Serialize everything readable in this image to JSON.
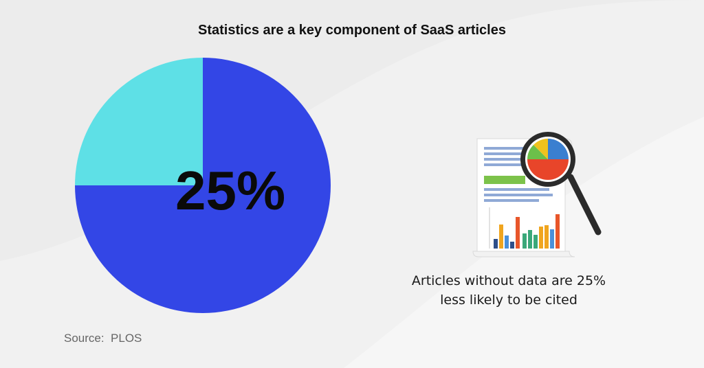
{
  "title": "Statistics are a key component of SaaS articles",
  "center_label": "25%",
  "caption_line1": "Articles without data are 25%",
  "caption_line2": "less likely to be cited",
  "source": "Source:  PLOS",
  "colors": {
    "background": "#ececec",
    "major_slice": "#3346e6",
    "minor_slice": "#5ee0e6",
    "text": "#111111"
  },
  "illustration_icon": "report-with-magnifying-glass",
  "chart_data": {
    "type": "pie",
    "title": "Statistics are a key component of SaaS articles",
    "slices": [
      {
        "value": 25,
        "color": "#5ee0e6"
      },
      {
        "value": 75,
        "color": "#3346e6"
      }
    ],
    "data_labels": [
      "25%"
    ]
  }
}
